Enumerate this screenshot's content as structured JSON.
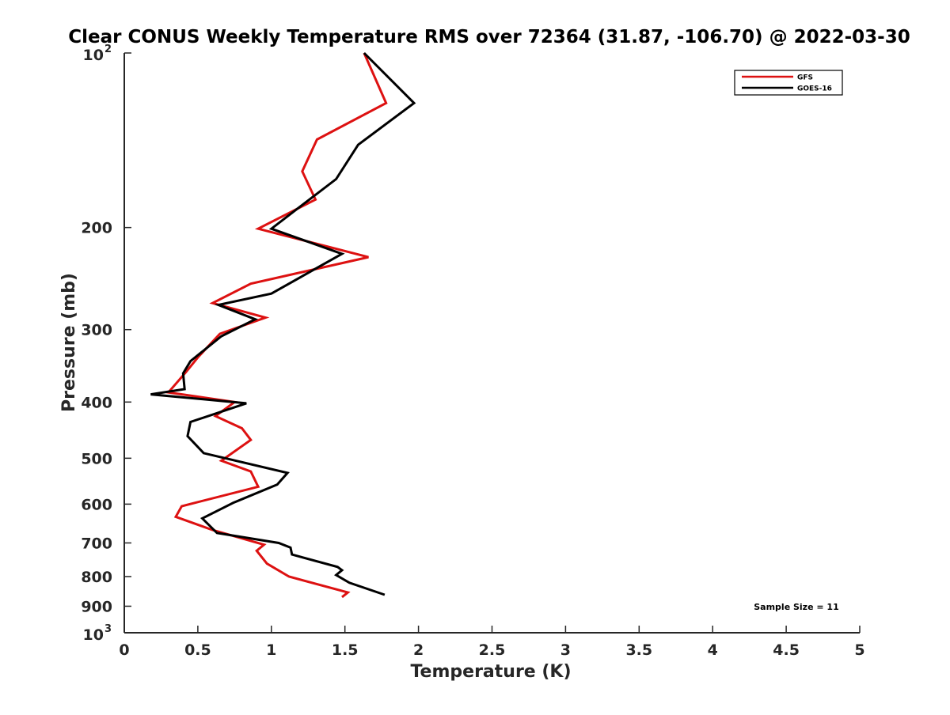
{
  "chart_data": {
    "type": "line",
    "title": "Clear CONUS Weekly Temperature RMS over 72364 (31.87, -106.70) @ 2022-03-30",
    "xlabel": "Temperature (K)",
    "ylabel": "Pressure (mb)",
    "xlim": [
      0,
      5
    ],
    "ylim": [
      100,
      1000
    ],
    "y_scale": "log",
    "y_reversed": true,
    "grid": false,
    "legend_position": "top-right",
    "x_ticks": [
      0,
      0.5,
      1,
      1.5,
      2,
      2.5,
      3,
      3.5,
      4,
      4.5,
      5
    ],
    "x_tick_labels": [
      "0",
      "0.5",
      "1",
      "1.5",
      "2",
      "2.5",
      "3",
      "3.5",
      "4",
      "4.5",
      "5"
    ],
    "y_ticks": [
      {
        "value": 100,
        "base": "10",
        "exp": "2"
      },
      {
        "value": 200,
        "label": "200"
      },
      {
        "value": 300,
        "label": "300"
      },
      {
        "value": 400,
        "label": "400"
      },
      {
        "value": 500,
        "label": "500"
      },
      {
        "value": 600,
        "label": "600"
      },
      {
        "value": 700,
        "label": "700"
      },
      {
        "value": 800,
        "label": "800"
      },
      {
        "value": 900,
        "label": "900"
      },
      {
        "value": 1000,
        "base": "10",
        "exp": "3"
      }
    ],
    "annotation": "Sample Size = 11",
    "series": [
      {
        "name": "GFS",
        "color": "#dd1111",
        "points": [
          [
            1.63,
            100
          ],
          [
            1.78,
            122
          ],
          [
            1.31,
            141
          ],
          [
            1.21,
            160
          ],
          [
            1.3,
            179
          ],
          [
            0.91,
            201
          ],
          [
            1.66,
            225
          ],
          [
            0.86,
            250
          ],
          [
            0.6,
            270
          ],
          [
            0.96,
            286
          ],
          [
            0.65,
            305
          ],
          [
            0.5,
            335
          ],
          [
            0.42,
            355
          ],
          [
            0.3,
            385
          ],
          [
            0.75,
            400
          ],
          [
            0.62,
            423
          ],
          [
            0.8,
            444
          ],
          [
            0.86,
            465
          ],
          [
            0.66,
            505
          ],
          [
            0.86,
            527
          ],
          [
            0.91,
            560
          ],
          [
            0.39,
            605
          ],
          [
            0.35,
            631
          ],
          [
            0.6,
            665
          ],
          [
            0.95,
            705
          ],
          [
            0.9,
            722
          ],
          [
            0.97,
            760
          ],
          [
            1.12,
            800
          ],
          [
            1.52,
            852
          ],
          [
            1.48,
            868
          ]
        ]
      },
      {
        "name": "GOES-16",
        "color": "#000000",
        "points": [
          [
            1.63,
            100
          ],
          [
            1.97,
            122
          ],
          [
            1.59,
            144
          ],
          [
            1.44,
            165
          ],
          [
            1.16,
            187
          ],
          [
            1.0,
            201
          ],
          [
            1.48,
            222
          ],
          [
            1.0,
            260
          ],
          [
            0.64,
            272
          ],
          [
            0.89,
            288
          ],
          [
            0.66,
            308
          ],
          [
            0.45,
            340
          ],
          [
            0.4,
            357
          ],
          [
            0.41,
            380
          ],
          [
            0.18,
            388
          ],
          [
            0.83,
            402
          ],
          [
            0.45,
            433
          ],
          [
            0.43,
            458
          ],
          [
            0.54,
            490
          ],
          [
            1.11,
            530
          ],
          [
            1.04,
            555
          ],
          [
            0.74,
            597
          ],
          [
            0.53,
            635
          ],
          [
            0.63,
            673
          ],
          [
            1.05,
            700
          ],
          [
            1.13,
            713
          ],
          [
            1.14,
            733
          ],
          [
            1.45,
            770
          ],
          [
            1.48,
            780
          ],
          [
            1.44,
            795
          ],
          [
            1.53,
            820
          ],
          [
            1.77,
            860
          ]
        ]
      }
    ]
  }
}
